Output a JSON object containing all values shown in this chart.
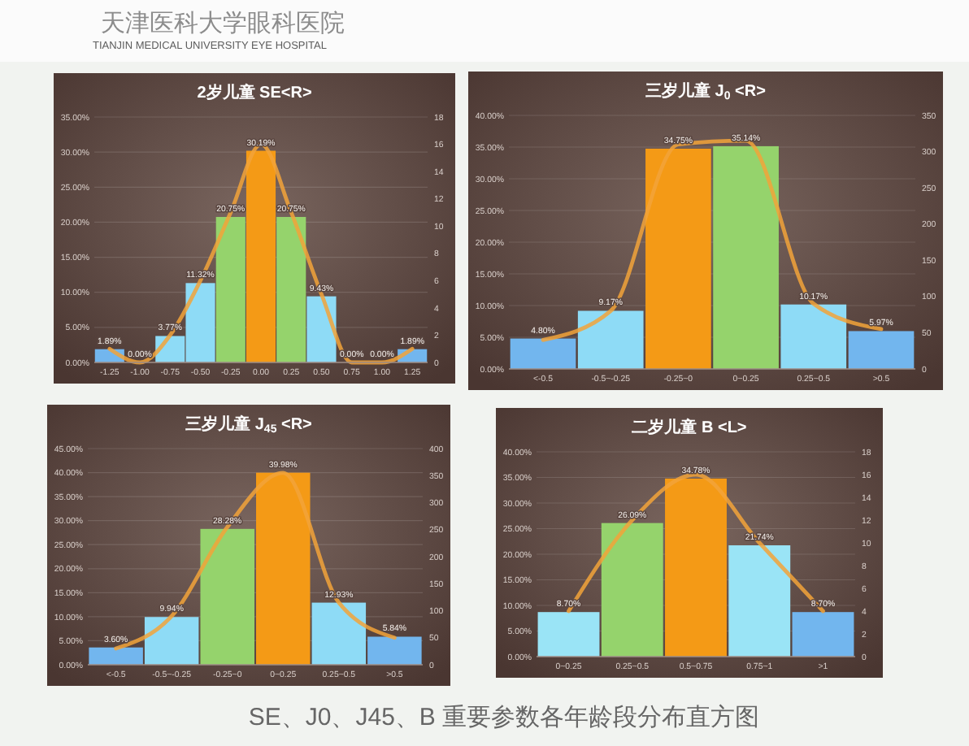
{
  "chart_data": [
    {
      "type": "other",
      "title": "天津医科大学眼科医院",
      "subtitle": "TIANJIN MEDICAL UNIVERSITY EYE HOSPITAL"
    },
    {
      "type": "bar",
      "title": "2岁儿童 SE<R>",
      "categories": [
        "-1.25",
        "-1.00",
        "-0.75",
        "-0.50",
        "-0.25",
        "0.00",
        "0.25",
        "0.50",
        "0.75",
        "1.00",
        "1.25"
      ],
      "series": [
        {
          "type": "bar",
          "colors": [
            "#72b6ee",
            "#72b6ee",
            "#8edbf6",
            "#8edbf6",
            "#95d36c",
            "#f49a16",
            "#95d36c",
            "#8edbf6",
            "#8edbf6",
            "#8edbf6",
            "#72b6ee"
          ],
          "values": [
            1.89,
            0,
            3.77,
            11.32,
            20.75,
            30.19,
            20.75,
            9.43,
            0,
            0,
            1.89
          ],
          "value_labels": [
            "1.89%",
            "0.00%",
            "3.77%",
            "11.32%",
            "20.75%",
            "30.19%",
            "20.75%",
            "9.43%",
            "0.00%",
            "0.00%",
            "1.89%"
          ]
        },
        {
          "type": "line",
          "axis": "y2",
          "color": "#f2a33a",
          "values": [
            1,
            0,
            2,
            6,
            11,
            16,
            11,
            5,
            0,
            0,
            1
          ]
        }
      ],
      "ylim": [
        0,
        35
      ],
      "yticks": [
        {
          "value": 0,
          "label": "0.00%"
        },
        {
          "value": 5,
          "label": "5.00%"
        },
        {
          "value": 10,
          "label": "10.00%"
        },
        {
          "value": 15,
          "label": "15.00%"
        },
        {
          "value": 20,
          "label": "20.00%"
        },
        {
          "value": 25,
          "label": "25.00%"
        },
        {
          "value": 30,
          "label": "30.00%"
        },
        {
          "value": 35,
          "label": "35.00%"
        }
      ],
      "y2lim": [
        0,
        18
      ],
      "y2ticks": [
        0,
        2,
        4,
        6,
        8,
        10,
        12,
        14,
        16,
        18
      ],
      "grid": "y"
    },
    {
      "type": "bar",
      "title": "三岁儿童 J$_{0}$ <R>",
      "categories": [
        "<-0.5",
        "-0.5~-0.25",
        "-0.25~0",
        "0~0.25",
        "0.25~0.5",
        ">0.5"
      ],
      "series": [
        {
          "type": "bar",
          "colors": [
            "#72b6ee",
            "#8edbf6",
            "#f49a16",
            "#95d36c",
            "#8edbf6",
            "#72b6ee"
          ],
          "values": [
            4.8,
            9.17,
            34.75,
            35.14,
            10.17,
            5.97
          ],
          "value_labels": [
            "4.80%",
            "9.17%",
            "34.75%",
            "35.14%",
            "10.17%",
            "5.97%"
          ]
        },
        {
          "type": "line",
          "axis": "y2",
          "color": "#f2a33a",
          "values": [
            40,
            80,
            310,
            315,
            90,
            55
          ]
        }
      ],
      "ylim": [
        0,
        40
      ],
      "yticks": [
        {
          "value": 0,
          "label": "0.00%"
        },
        {
          "value": 5,
          "label": "5.00%"
        },
        {
          "value": 10,
          "label": "10.00%"
        },
        {
          "value": 15,
          "label": "15.00%"
        },
        {
          "value": 20,
          "label": "20.00%"
        },
        {
          "value": 25,
          "label": "25.00%"
        },
        {
          "value": 30,
          "label": "30.00%"
        },
        {
          "value": 35,
          "label": "35.00%"
        },
        {
          "value": 40,
          "label": "40.00%"
        }
      ],
      "y2lim": [
        0,
        350
      ],
      "y2ticks": [
        0,
        50,
        100,
        150,
        200,
        250,
        300,
        350
      ],
      "grid": "y"
    },
    {
      "type": "bar",
      "title": "三岁儿童 J$_{45}$ <R>",
      "categories": [
        "<-0.5",
        "-0.5~-0.25",
        "-0.25~0",
        "0~0.25",
        "0.25~0.5",
        ">0.5"
      ],
      "series": [
        {
          "type": "bar",
          "colors": [
            "#72b6ee",
            "#8edbf6",
            "#95d36c",
            "#f49a16",
            "#8edbf6",
            "#72b6ee"
          ],
          "values": [
            3.6,
            9.94,
            28.28,
            39.98,
            12.93,
            5.84
          ],
          "value_labels": [
            "3.60%",
            "9.94%",
            "28.28%",
            "39.98%",
            "12.93%",
            "5.84%"
          ]
        },
        {
          "type": "line",
          "axis": "y2",
          "color": "#f2a33a",
          "values": [
            30,
            90,
            255,
            355,
            115,
            50
          ]
        }
      ],
      "ylim": [
        0,
        45
      ],
      "yticks": [
        {
          "value": 0,
          "label": "0.00%"
        },
        {
          "value": 5,
          "label": "5.00%"
        },
        {
          "value": 10,
          "label": "10.00%"
        },
        {
          "value": 15,
          "label": "15.00%"
        },
        {
          "value": 20,
          "label": "20.00%"
        },
        {
          "value": 25,
          "label": "25.00%"
        },
        {
          "value": 30,
          "label": "30.00%"
        },
        {
          "value": 35,
          "label": "35.00%"
        },
        {
          "value": 40,
          "label": "40.00%"
        },
        {
          "value": 45,
          "label": "45.00%"
        }
      ],
      "y2lim": [
        0,
        400
      ],
      "y2ticks": [
        0,
        50,
        100,
        150,
        200,
        250,
        300,
        350,
        400
      ],
      "grid": "y"
    },
    {
      "type": "bar",
      "title": "二岁儿童 B <L>",
      "categories": [
        "0~0.25",
        "0.25~0.5",
        "0.5~0.75",
        "0.75~1",
        ">1"
      ],
      "series": [
        {
          "type": "bar",
          "colors": [
            "#9ae4f6",
            "#95d36c",
            "#f49a16",
            "#9ae4f6",
            "#72b6ee"
          ],
          "values": [
            8.7,
            26.09,
            34.78,
            21.74,
            8.7
          ],
          "value_labels": [
            "8.70%",
            "26.09%",
            "34.78%",
            "21.74%",
            "8.70%"
          ]
        },
        {
          "type": "line",
          "axis": "y2",
          "color": "#f2a33a",
          "values": [
            4,
            12,
            16,
            10,
            4
          ]
        }
      ],
      "ylim": [
        0,
        40
      ],
      "yticks": [
        {
          "value": 0,
          "label": "0.00%"
        },
        {
          "value": 5,
          "label": "5.00%"
        },
        {
          "value": 10,
          "label": "10.00%"
        },
        {
          "value": 15,
          "label": "15.00%"
        },
        {
          "value": 20,
          "label": "20.00%"
        },
        {
          "value": 25,
          "label": "25.00%"
        },
        {
          "value": 30,
          "label": "30.00%"
        },
        {
          "value": 35,
          "label": "35.00%"
        },
        {
          "value": 40,
          "label": "40.00%"
        }
      ],
      "y2lim": [
        0,
        18
      ],
      "y2ticks": [
        0,
        2,
        4,
        6,
        8,
        10,
        12,
        14,
        16,
        18
      ],
      "grid": "y"
    },
    {
      "type": "other",
      "title": "SE、J0、J45、B 重要参数各年龄段分布直方图"
    }
  ]
}
